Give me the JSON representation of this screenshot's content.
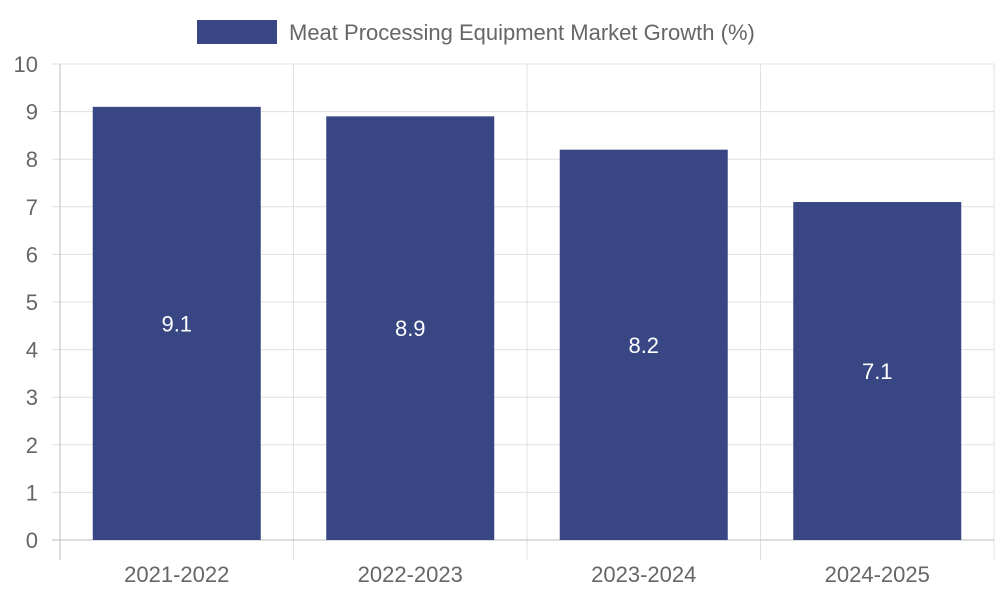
{
  "chart_data": {
    "type": "bar",
    "categories": [
      "2021-2022",
      "2022-2023",
      "2023-2024",
      "2024-2025"
    ],
    "series": [
      {
        "name": "Meat Processing Equipment Market Growth (%)",
        "values": [
          9.1,
          8.9,
          8.2,
          7.1
        ],
        "color": "#384683"
      }
    ],
    "ylim": [
      0,
      10
    ],
    "y_ticks": [
      0,
      1,
      2,
      3,
      4,
      5,
      6,
      7,
      8,
      9,
      10
    ],
    "grid": true,
    "legend_position": "top-center",
    "data_labels": [
      "9.1",
      "8.9",
      "8.2",
      "7.1"
    ]
  },
  "colors": {
    "bar": "#384683",
    "grid": "#e0e0e0",
    "axis_text": "#666666",
    "data_label": "#ffffff"
  }
}
